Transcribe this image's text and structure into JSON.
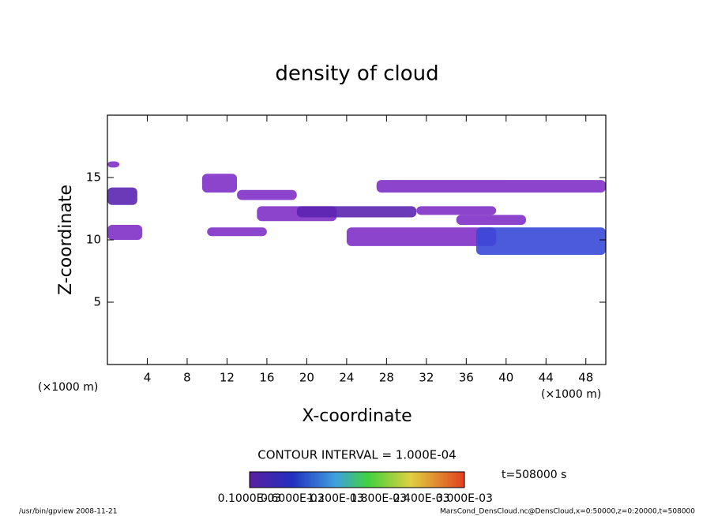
{
  "chart_data": {
    "type": "contour",
    "title": "density of cloud",
    "x_label": "X-coordinate",
    "y_label": "Z-coordinate",
    "x_unit_left": "(×1000 m)",
    "x_unit_right": "(×1000 m)",
    "xlim": [
      0,
      50
    ],
    "ylim": [
      0,
      20
    ],
    "xticks": [
      4,
      8,
      12,
      16,
      20,
      24,
      28,
      32,
      36,
      40,
      44,
      48
    ],
    "yticks": [
      5,
      10,
      15
    ],
    "patches": [
      {
        "x": [
          0,
          1.2
        ],
        "z": [
          15.8,
          16.3
        ],
        "level": 1
      },
      {
        "x": [
          0,
          3
        ],
        "z": [
          12.8,
          14.2
        ],
        "level": 2
      },
      {
        "x": [
          0,
          3.5
        ],
        "z": [
          10,
          11.2
        ],
        "level": 1
      },
      {
        "x": [
          9.5,
          13
        ],
        "z": [
          13.8,
          15.3
        ],
        "level": 1
      },
      {
        "x": [
          13,
          19
        ],
        "z": [
          13.2,
          14
        ],
        "level": 1
      },
      {
        "x": [
          15,
          23
        ],
        "z": [
          11.5,
          12.7
        ],
        "level": 1
      },
      {
        "x": [
          19,
          31
        ],
        "z": [
          11.8,
          12.7
        ],
        "level": 2
      },
      {
        "x": [
          24,
          39
        ],
        "z": [
          9.5,
          11
        ],
        "level": 1
      },
      {
        "x": [
          27,
          50
        ],
        "z": [
          13.8,
          14.8
        ],
        "level": 1
      },
      {
        "x": [
          31,
          39
        ],
        "z": [
          12,
          12.7
        ],
        "level": 1
      },
      {
        "x": [
          35,
          42
        ],
        "z": [
          11.2,
          12
        ],
        "level": 1
      },
      {
        "x": [
          37,
          50
        ],
        "z": [
          8.8,
          11
        ],
        "level": 3
      },
      {
        "x": [
          10,
          16
        ],
        "z": [
          10.3,
          11
        ],
        "level": 1
      }
    ],
    "contour_interval": "CONTOUR INTERVAL = 1.000E-04",
    "time_label": "t=508000 s",
    "colorbar_labels": [
      "0.1000E-03",
      "0.6000E-03",
      "1.200E-03",
      "1.800E-03",
      "2.400E-03",
      "3.000E-03"
    ],
    "footer_left": "/usr/bin/gpview   2008-11-21",
    "footer_right": "MarsCond_DensCloud.nc@DensCloud,x=0:50000,z=0:20000,t=508000"
  }
}
